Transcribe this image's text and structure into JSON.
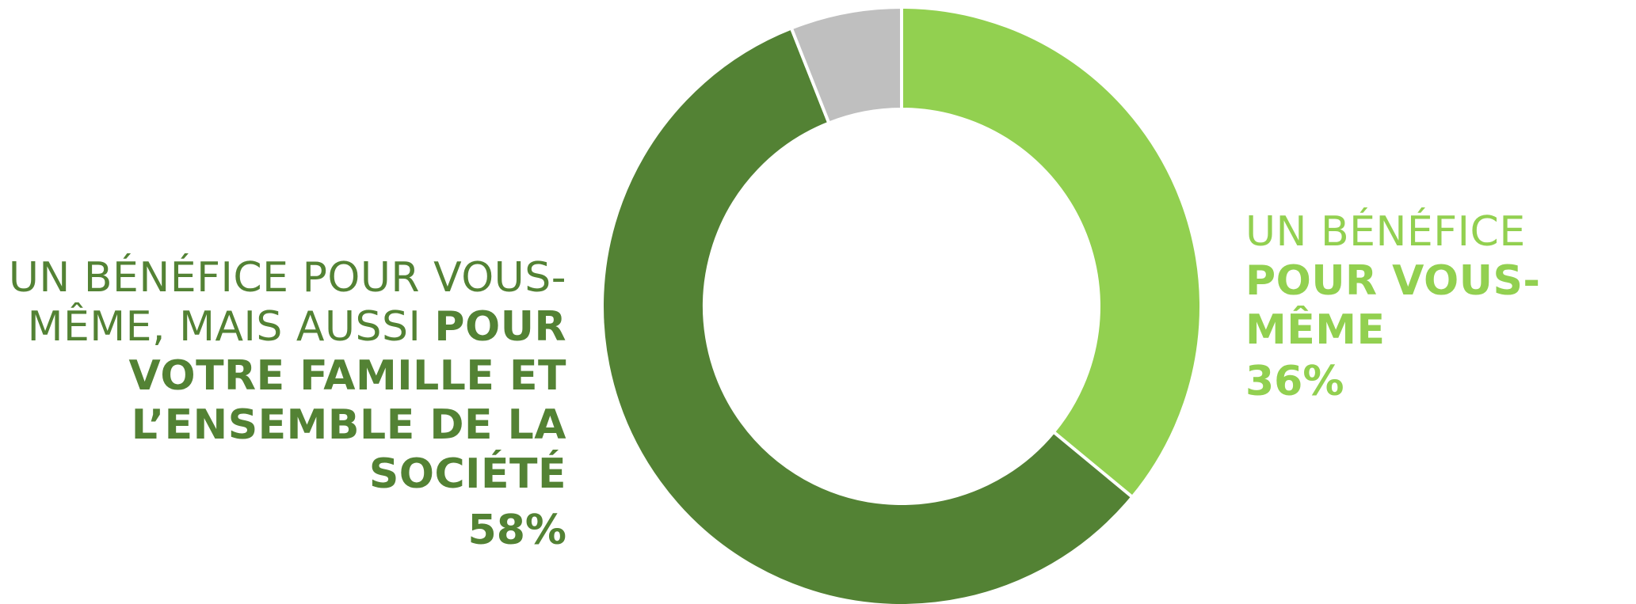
{
  "chart_data": {
    "type": "pie",
    "variant": "donut",
    "slices": [
      {
        "label_light": "UN BÉNÉFICE ",
        "label_bold": "POUR VOUS-MÊME",
        "value": 36,
        "value_label": "36%",
        "color": "#92d050"
      },
      {
        "label_light": "UN BÉNÉFICE POUR VOUS-MÊME, MAIS AUSSI ",
        "label_bold": "POUR VOTRE FAMILLE ET L’ENSEMBLE DE LA SOCIÉTÉ",
        "value": 58,
        "value_label": "58%",
        "color": "#538234"
      },
      {
        "label_light": "",
        "label_bold": "",
        "value": 6,
        "value_label": "",
        "color": "#bfbfbf"
      }
    ],
    "start_angle": "12 o'clock",
    "direction": "clockwise",
    "separator_color": "#ffffff"
  }
}
